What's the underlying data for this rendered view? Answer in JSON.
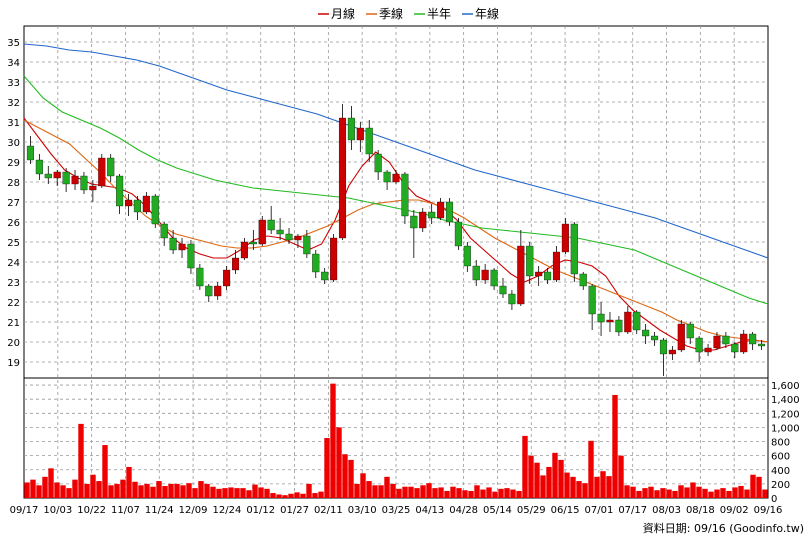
{
  "legend": [
    {
      "label": "月線",
      "color": "#cc0000"
    },
    {
      "label": "季線",
      "color": "#dd6611"
    },
    {
      "label": "半年",
      "color": "#22bb22"
    },
    {
      "label": "年線",
      "color": "#2266cc"
    }
  ],
  "footer": "資料日期: 09/16  (Goodinfo.tw)",
  "chart_data": [
    {
      "type": "line",
      "ylim": [
        18.2,
        35.8
      ],
      "yticks": [
        19,
        20,
        21,
        22,
        23,
        24,
        25,
        26,
        27,
        28,
        29,
        30,
        31,
        32,
        33,
        34,
        35
      ],
      "xticks": [
        "09/17",
        "10/03",
        "10/22",
        "11/07",
        "11/24",
        "12/09",
        "12/24",
        "01/12",
        "01/27",
        "02/11",
        "03/10",
        "03/25",
        "04/13",
        "04/28",
        "05/14",
        "05/29",
        "06/15",
        "07/01",
        "07/17",
        "08/03",
        "08/18",
        "09/02",
        "09/16"
      ],
      "colors": {
        "up": "#cc0000",
        "down": "#22aa22"
      },
      "series": [
        {
          "name": "月線",
          "color": "#cc0000",
          "values": [
            31.2,
            30.3,
            29.4,
            28.6,
            28.2,
            27.9,
            27.8,
            27.7,
            27.4,
            26.8,
            26.0,
            25.2,
            24.7,
            24.4,
            24.2,
            24.2,
            24.6,
            25.1,
            25.3,
            25.2,
            24.9,
            24.6,
            24.9,
            26.1,
            27.8,
            28.8,
            29.5,
            29.0,
            28.0,
            27.3,
            27.0,
            26.7,
            26.1,
            25.2,
            24.6,
            24.0,
            23.4,
            23.0,
            23.3,
            23.8,
            24.1,
            24.0,
            23.8,
            23.3,
            22.3,
            21.6,
            21.1,
            20.6,
            20.2,
            19.8,
            19.6,
            19.6,
            19.8,
            20.0,
            20.1,
            20.0
          ]
        },
        {
          "name": "季線",
          "color": "#dd6611",
          "values": [
            31.1,
            30.7,
            30.3,
            29.9,
            29.2,
            28.5,
            27.7,
            27.0,
            26.3,
            25.8,
            25.4,
            25.2,
            25.0,
            24.8,
            24.7,
            24.7,
            24.8,
            25.0,
            25.2,
            25.5,
            25.8,
            26.2,
            26.6,
            26.9,
            27.0,
            27.1,
            27.1,
            26.9,
            26.6,
            26.2,
            25.7,
            25.2,
            24.8,
            24.4,
            24.0,
            23.6,
            23.3,
            23.0,
            22.7,
            22.4,
            22.1,
            21.8,
            21.5,
            21.1,
            20.8,
            20.5,
            20.3,
            20.2,
            20.1,
            20.0
          ]
        },
        {
          "name": "半年",
          "color": "#22bb22",
          "values": [
            33.3,
            32.2,
            31.5,
            31.1,
            30.7,
            30.2,
            29.6,
            29.1,
            28.7,
            28.4,
            28.1,
            27.9,
            27.7,
            27.6,
            27.5,
            27.4,
            27.3,
            27.2,
            27.0,
            26.8,
            26.6,
            26.4,
            26.1,
            25.9,
            25.7,
            25.6,
            25.5,
            25.4,
            25.3,
            25.2,
            25.0,
            24.8,
            24.6,
            24.2,
            23.8,
            23.4,
            23.0,
            22.6,
            22.2,
            21.9
          ]
        },
        {
          "name": "年線",
          "color": "#2266cc",
          "values": [
            34.9,
            34.8,
            34.6,
            34.5,
            34.3,
            34.1,
            33.8,
            33.4,
            33.0,
            32.6,
            32.3,
            32.0,
            31.7,
            31.4,
            31.0,
            30.6,
            30.2,
            29.8,
            29.4,
            29.0,
            28.6,
            28.3,
            28.0,
            27.7,
            27.4,
            27.1,
            26.8,
            26.5,
            26.2,
            25.8,
            25.4,
            25.0,
            24.6,
            24.2
          ]
        }
      ],
      "candles": [
        [
          29.8,
          30.3,
          28.9,
          29.1
        ],
        [
          29.1,
          29.4,
          28.1,
          28.4
        ],
        [
          28.4,
          28.8,
          27.9,
          28.2
        ],
        [
          28.2,
          28.6,
          27.8,
          28.5
        ],
        [
          28.5,
          28.7,
          27.5,
          27.9
        ],
        [
          27.9,
          28.6,
          27.6,
          28.3
        ],
        [
          28.3,
          28.5,
          27.4,
          27.6
        ],
        [
          27.6,
          28.1,
          27.0,
          27.8
        ],
        [
          27.8,
          29.4,
          27.7,
          29.2
        ],
        [
          29.2,
          29.4,
          28.0,
          28.3
        ],
        [
          28.3,
          28.4,
          26.4,
          26.8
        ],
        [
          26.8,
          27.4,
          26.3,
          27.1
        ],
        [
          27.1,
          27.3,
          26.1,
          26.5
        ],
        [
          26.5,
          27.5,
          26.4,
          27.3
        ],
        [
          27.3,
          27.4,
          25.7,
          25.9
        ],
        [
          25.9,
          26.0,
          24.8,
          25.2
        ],
        [
          25.2,
          25.6,
          24.4,
          24.6
        ],
        [
          24.6,
          25.2,
          24.2,
          24.9
        ],
        [
          24.9,
          25.1,
          23.4,
          23.7
        ],
        [
          23.7,
          23.9,
          22.6,
          22.8
        ],
        [
          22.8,
          22.9,
          22.0,
          22.3
        ],
        [
          22.3,
          23.0,
          22.1,
          22.8
        ],
        [
          22.8,
          23.8,
          22.6,
          23.6
        ],
        [
          23.6,
          24.6,
          23.4,
          24.2
        ],
        [
          24.2,
          25.2,
          24.1,
          25.0
        ],
        [
          25.0,
          25.6,
          24.6,
          24.9
        ],
        [
          24.9,
          26.3,
          24.8,
          26.1
        ],
        [
          26.1,
          26.8,
          25.4,
          25.6
        ],
        [
          25.6,
          26.2,
          25.1,
          25.4
        ],
        [
          25.4,
          25.7,
          24.9,
          25.1
        ],
        [
          25.1,
          25.4,
          24.7,
          25.3
        ],
        [
          25.3,
          25.6,
          24.2,
          24.4
        ],
        [
          24.4,
          24.6,
          23.2,
          23.5
        ],
        [
          23.5,
          23.7,
          22.9,
          23.1
        ],
        [
          23.1,
          25.4,
          23.0,
          25.2
        ],
        [
          25.2,
          31.9,
          25.1,
          31.2
        ],
        [
          31.2,
          31.8,
          29.6,
          30.1
        ],
        [
          30.1,
          31.0,
          29.5,
          30.7
        ],
        [
          30.7,
          31.1,
          29.0,
          29.4
        ],
        [
          29.4,
          29.6,
          28.1,
          28.5
        ],
        [
          28.5,
          28.6,
          27.6,
          28.0
        ],
        [
          28.0,
          28.6,
          27.9,
          28.4
        ],
        [
          28.4,
          28.5,
          25.9,
          26.3
        ],
        [
          26.3,
          26.6,
          24.2,
          25.7
        ],
        [
          25.7,
          26.7,
          25.5,
          26.5
        ],
        [
          26.5,
          26.9,
          25.9,
          26.2
        ],
        [
          26.2,
          27.2,
          26.1,
          27.0
        ],
        [
          27.0,
          27.2,
          25.8,
          26.0
        ],
        [
          26.0,
          26.2,
          24.6,
          24.8
        ],
        [
          24.8,
          25.0,
          23.5,
          23.8
        ],
        [
          23.8,
          24.1,
          22.8,
          23.1
        ],
        [
          23.1,
          23.9,
          22.9,
          23.6
        ],
        [
          23.6,
          23.7,
          22.6,
          22.8
        ],
        [
          22.8,
          23.2,
          22.2,
          22.4
        ],
        [
          22.4,
          22.6,
          21.6,
          21.9
        ],
        [
          21.9,
          25.6,
          21.8,
          24.8
        ],
        [
          24.8,
          25.0,
          22.9,
          23.3
        ],
        [
          23.3,
          23.8,
          22.8,
          23.5
        ],
        [
          23.5,
          23.7,
          22.9,
          23.1
        ],
        [
          23.1,
          24.8,
          23.0,
          24.5
        ],
        [
          24.5,
          26.2,
          24.4,
          25.9
        ],
        [
          25.9,
          26.0,
          23.0,
          23.4
        ],
        [
          23.4,
          23.5,
          22.6,
          22.8
        ],
        [
          22.8,
          22.9,
          20.6,
          21.4
        ],
        [
          21.4,
          22.0,
          20.3,
          21.0
        ],
        [
          21.0,
          21.5,
          20.5,
          21.1
        ],
        [
          21.1,
          21.3,
          20.3,
          20.5
        ],
        [
          20.5,
          21.8,
          20.4,
          21.5
        ],
        [
          21.5,
          21.6,
          20.4,
          20.6
        ],
        [
          20.6,
          20.9,
          19.9,
          20.3
        ],
        [
          20.3,
          20.5,
          19.8,
          20.1
        ],
        [
          20.1,
          20.2,
          18.3,
          19.4
        ],
        [
          19.4,
          19.8,
          19.1,
          19.6
        ],
        [
          19.6,
          21.1,
          19.5,
          20.9
        ],
        [
          20.9,
          21.0,
          19.9,
          20.2
        ],
        [
          20.2,
          20.3,
          19.0,
          19.5
        ],
        [
          19.5,
          19.9,
          19.3,
          19.7
        ],
        [
          19.7,
          20.5,
          19.6,
          20.3
        ],
        [
          20.3,
          20.5,
          19.7,
          19.9
        ],
        [
          19.9,
          20.0,
          19.2,
          19.5
        ],
        [
          19.5,
          20.6,
          19.4,
          20.4
        ],
        [
          20.4,
          20.5,
          19.6,
          19.9
        ],
        [
          19.9,
          20.1,
          19.6,
          19.8
        ]
      ]
    },
    {
      "type": "bar",
      "ylim": [
        0,
        1700
      ],
      "yticks": [
        0,
        200,
        400,
        600,
        800,
        1000,
        1200,
        1400,
        1600
      ],
      "ytick_labels": [
        "0",
        "200",
        "400",
        "600",
        "800",
        "1,000",
        "1,200",
        "1,400",
        "1,600"
      ],
      "color": "#ee0000",
      "values": [
        220,
        260,
        180,
        300,
        420,
        220,
        180,
        140,
        260,
        1050,
        200,
        330,
        240,
        750,
        180,
        200,
        260,
        440,
        230,
        180,
        200,
        160,
        240,
        170,
        200,
        200,
        180,
        210,
        140,
        240,
        200,
        160,
        130,
        140,
        150,
        140,
        140,
        110,
        190,
        150,
        130,
        70,
        50,
        40,
        60,
        80,
        60,
        200,
        70,
        90,
        850,
        1620,
        1000,
        620,
        540,
        200,
        350,
        240,
        180,
        180,
        300,
        200,
        130,
        160,
        160,
        140,
        180,
        210,
        140,
        150,
        100,
        160,
        140,
        110,
        100,
        180,
        120,
        150,
        90,
        130,
        140,
        120,
        100,
        880,
        600,
        500,
        320,
        440,
        640,
        540,
        360,
        300,
        240,
        210,
        810,
        300,
        380,
        310,
        1460,
        600,
        180,
        160,
        100,
        140,
        160,
        110,
        140,
        120,
        100,
        180,
        150,
        220,
        160,
        130,
        90,
        120,
        140,
        100,
        150,
        170,
        120,
        330,
        300,
        120
      ]
    }
  ]
}
